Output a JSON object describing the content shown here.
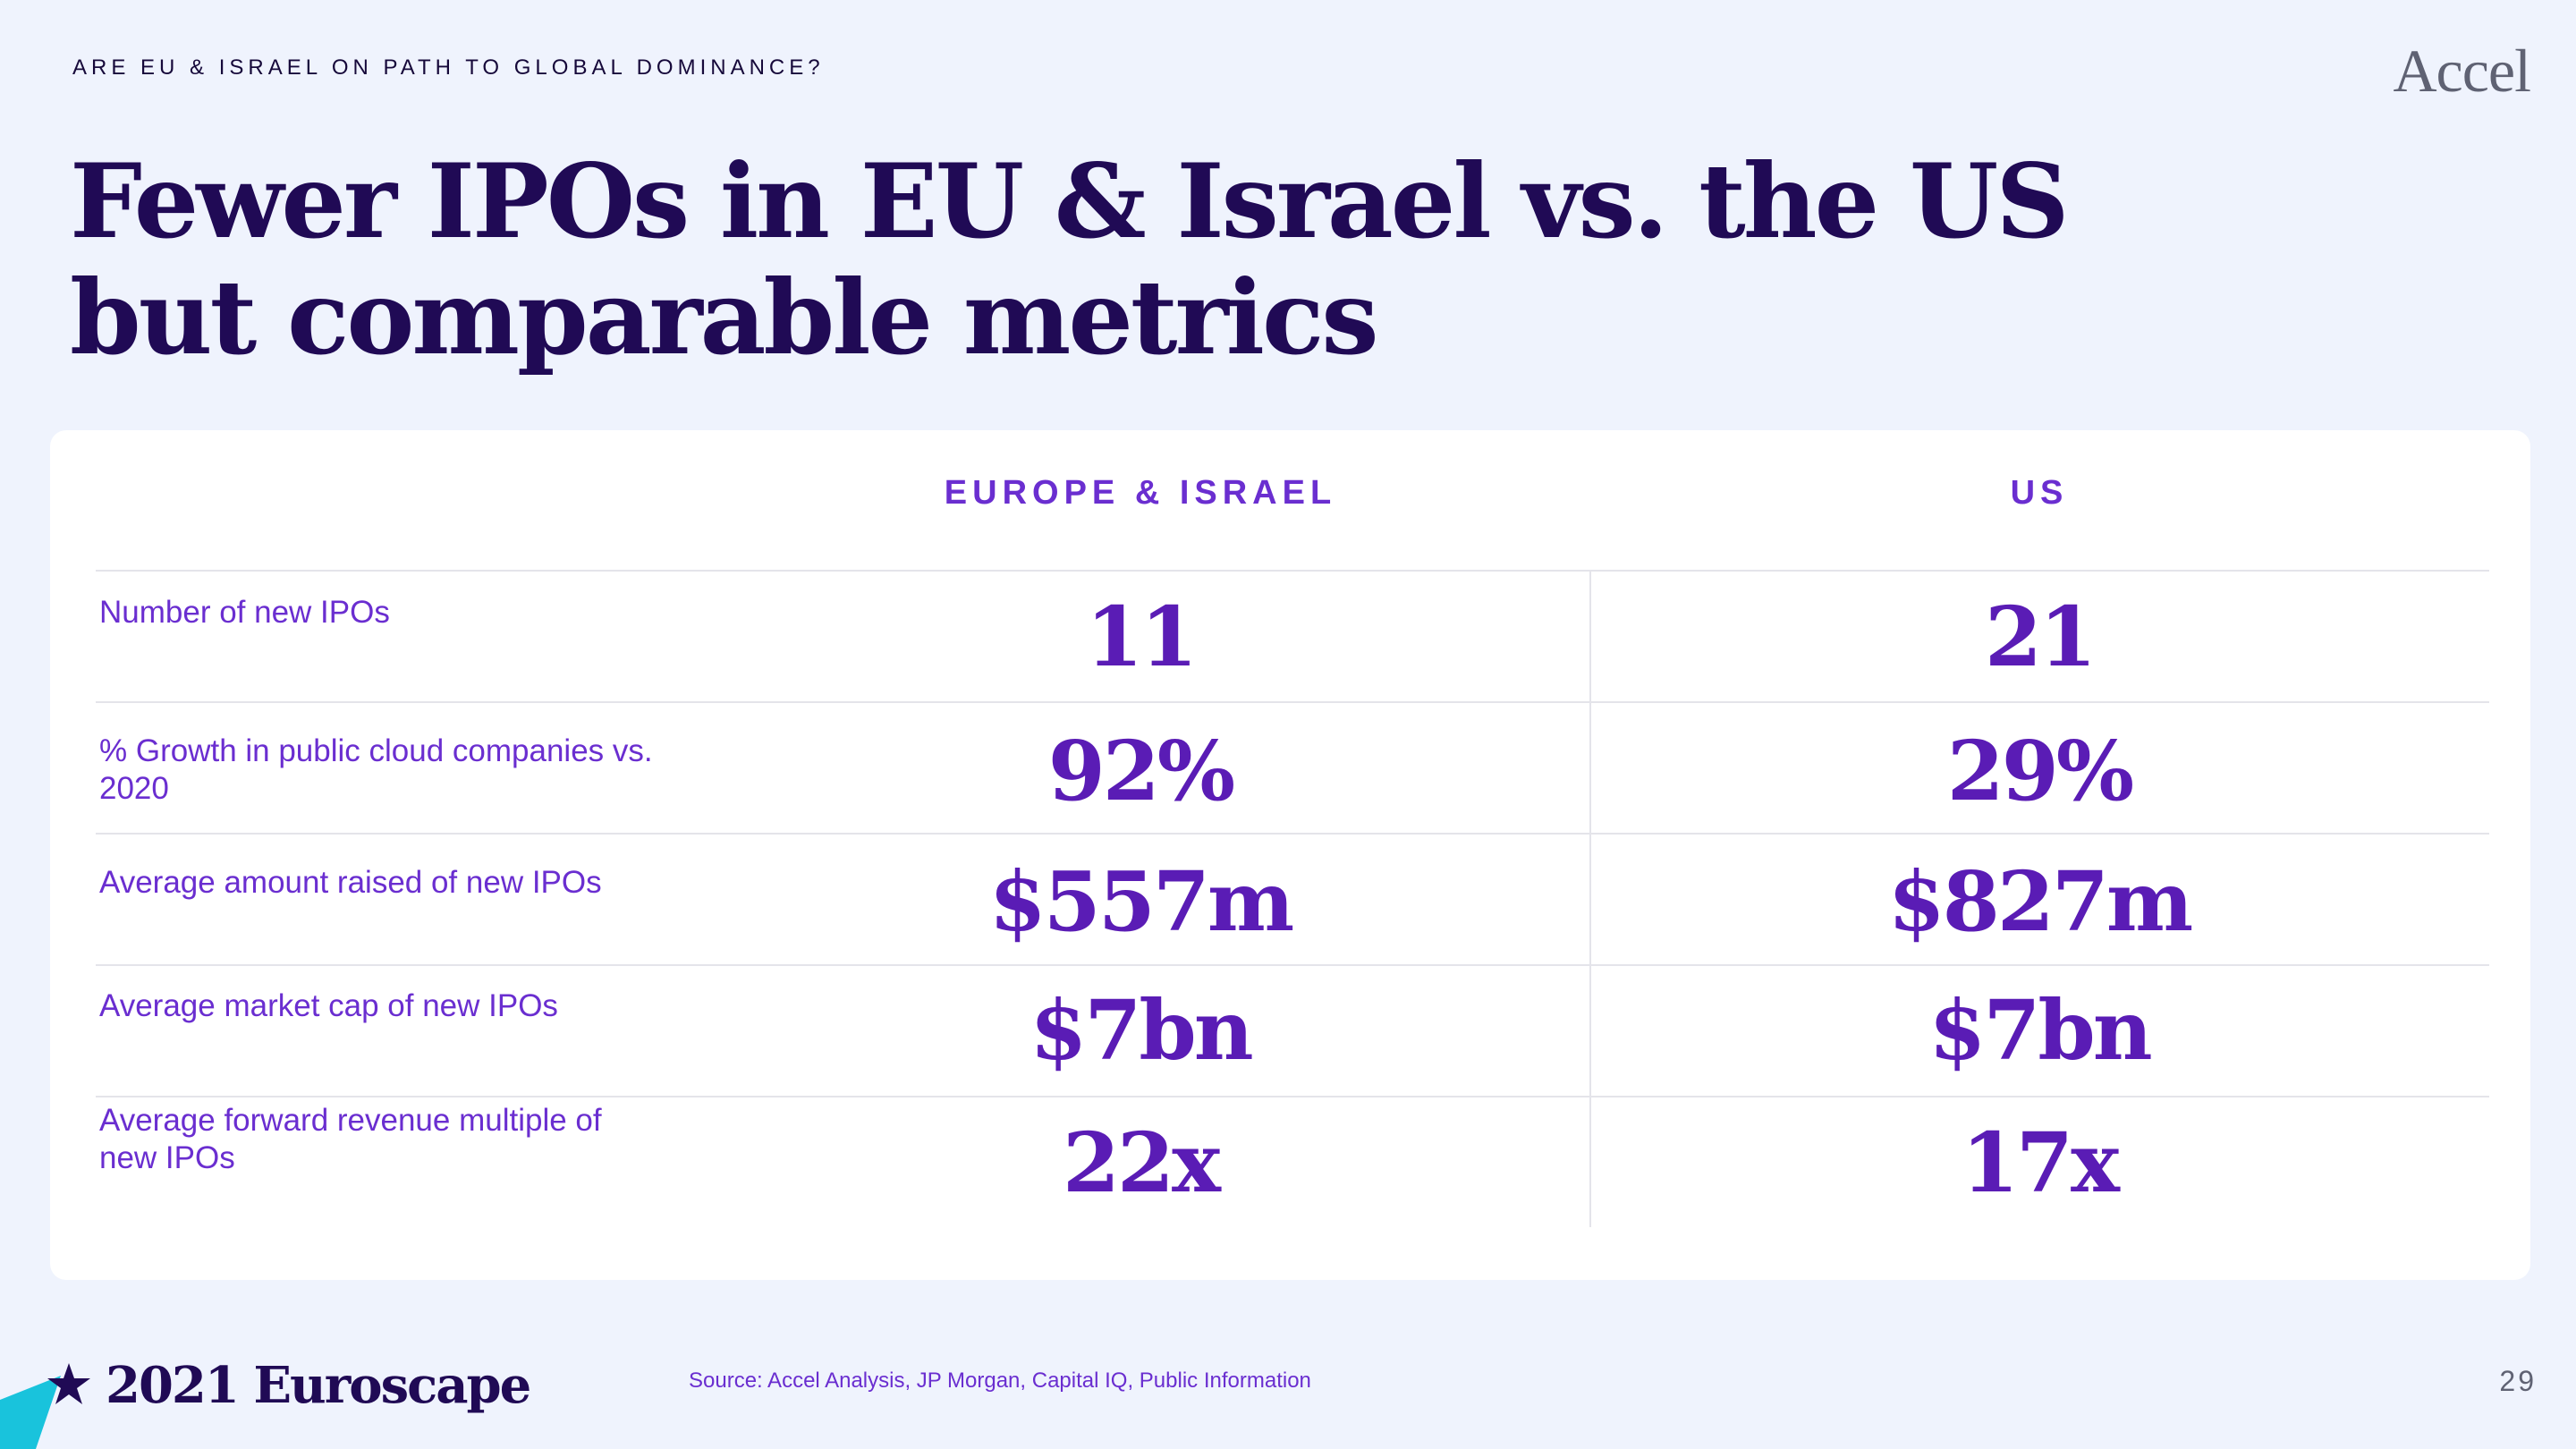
{
  "header": {
    "kicker": "ARE EU & ISRAEL ON PATH TO GLOBAL DOMINANCE?",
    "logo": "Accel",
    "title": "Fewer IPOs in EU & Israel vs. the US but comparable metrics"
  },
  "table": {
    "columns": [
      "EUROPE & ISRAEL",
      "US"
    ],
    "rows": [
      {
        "label": "Number of new IPOs",
        "eu": "11",
        "us": "21"
      },
      {
        "label": "% Growth in public cloud companies vs. 2020",
        "eu": "92%",
        "us": "29%"
      },
      {
        "label": "Average amount raised of new IPOs",
        "eu": "$557m",
        "us": "$827m"
      },
      {
        "label": "Average market cap of new IPOs",
        "eu": "$7bn",
        "us": "$7bn"
      },
      {
        "label": "Average forward revenue multiple of new IPOs",
        "eu": "22x",
        "us": "17x"
      }
    ]
  },
  "footer": {
    "brand": "2021 Euroscape",
    "source": "Source: Accel Analysis, JP Morgan, Capital IQ, Public Information",
    "page_number": "29",
    "star_icon": "star-icon"
  },
  "colors": {
    "background": "#eff3fd",
    "title": "#200a55",
    "accent": "#6a2ed0",
    "value": "#5a1cb5",
    "cyan": "#19c3dc"
  }
}
